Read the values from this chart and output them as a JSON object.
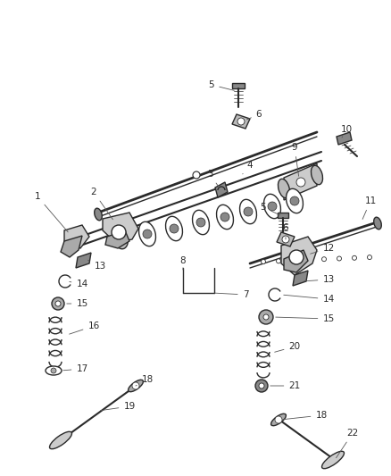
{
  "background_color": "#ffffff",
  "fig_width": 4.38,
  "fig_height": 5.33,
  "dpi": 100,
  "line_color": "#2a2a2a",
  "label_color": "#2a2a2a",
  "label_fontsize": 7.5,
  "gray_fill": "#aaaaaa",
  "light_gray": "#cccccc",
  "dark_gray": "#666666"
}
